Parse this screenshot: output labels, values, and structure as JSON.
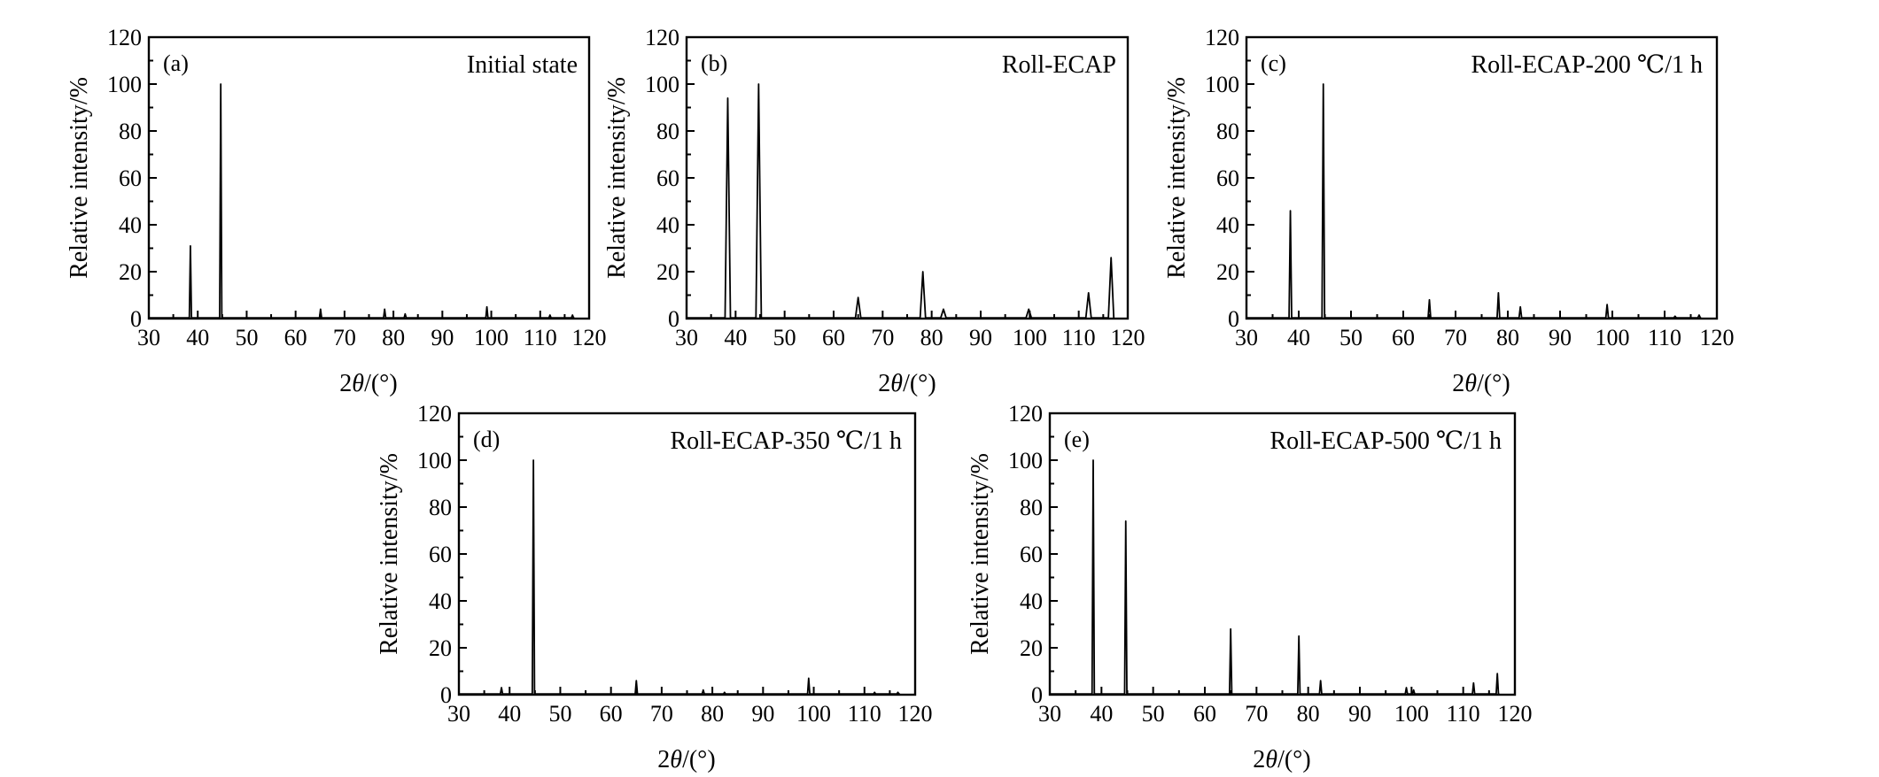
{
  "chart_data": [
    {
      "type": "line",
      "panel_label": "(a)",
      "title": "Initial state",
      "xlabel": "2θ/(°)",
      "ylabel": "Relative intensity/%",
      "xlim": [
        30,
        120
      ],
      "ylim": [
        0,
        120
      ],
      "xticks": [
        30,
        40,
        50,
        60,
        70,
        80,
        90,
        100,
        110,
        120
      ],
      "yticks": [
        0,
        20,
        40,
        60,
        80,
        100,
        120
      ],
      "grid": false,
      "peaks": [
        {
          "x": 38.5,
          "y": 31
        },
        {
          "x": 44.7,
          "y": 100
        },
        {
          "x": 65.1,
          "y": 4
        },
        {
          "x": 78.2,
          "y": 4
        },
        {
          "x": 82.4,
          "y": 2
        },
        {
          "x": 99.1,
          "y": 5
        },
        {
          "x": 112.0,
          "y": 1.5
        },
        {
          "x": 116.6,
          "y": 1.5
        }
      ]
    },
    {
      "type": "line",
      "panel_label": "(b)",
      "title": "Roll-ECAP",
      "xlabel": "2θ/(°)",
      "ylabel": "Relative intensity/%",
      "xlim": [
        30,
        120
      ],
      "ylim": [
        0,
        120
      ],
      "xticks": [
        30,
        40,
        50,
        60,
        70,
        80,
        90,
        100,
        110,
        120
      ],
      "yticks": [
        0,
        20,
        40,
        60,
        80,
        100,
        120
      ],
      "grid": false,
      "peaks": [
        {
          "x": 38.4,
          "y": 94
        },
        {
          "x": 44.7,
          "y": 100
        },
        {
          "x": 65.0,
          "y": 9
        },
        {
          "x": 78.2,
          "y": 20
        },
        {
          "x": 82.4,
          "y": 4
        },
        {
          "x": 99.8,
          "y": 4
        },
        {
          "x": 112.0,
          "y": 11
        },
        {
          "x": 116.6,
          "y": 26
        }
      ]
    },
    {
      "type": "line",
      "panel_label": "(c)",
      "title": "Roll-ECAP-200 ℃/1 h",
      "xlabel": "2θ/(°)",
      "ylabel": "Relative intensity/%",
      "xlim": [
        30,
        120
      ],
      "ylim": [
        0,
        120
      ],
      "xticks": [
        30,
        40,
        50,
        60,
        70,
        80,
        90,
        100,
        110,
        120
      ],
      "yticks": [
        0,
        20,
        40,
        60,
        80,
        100,
        120
      ],
      "grid": false,
      "peaks": [
        {
          "x": 38.4,
          "y": 46
        },
        {
          "x": 44.7,
          "y": 100
        },
        {
          "x": 65.0,
          "y": 8
        },
        {
          "x": 78.2,
          "y": 11
        },
        {
          "x": 82.4,
          "y": 5
        },
        {
          "x": 99.0,
          "y": 6
        },
        {
          "x": 112.0,
          "y": 1
        },
        {
          "x": 116.6,
          "y": 1.5
        }
      ]
    },
    {
      "type": "line",
      "panel_label": "(d)",
      "title": "Roll-ECAP-350 ℃/1 h",
      "xlabel": "2θ/(°)",
      "ylabel": "Relative intensity/%",
      "xlim": [
        30,
        120
      ],
      "ylim": [
        0,
        120
      ],
      "xticks": [
        30,
        40,
        50,
        60,
        70,
        80,
        90,
        100,
        110,
        120
      ],
      "yticks": [
        0,
        20,
        40,
        60,
        80,
        100,
        120
      ],
      "grid": false,
      "peaks": [
        {
          "x": 38.4,
          "y": 3
        },
        {
          "x": 44.7,
          "y": 100
        },
        {
          "x": 65.0,
          "y": 6
        },
        {
          "x": 78.2,
          "y": 2
        },
        {
          "x": 82.4,
          "y": 1
        },
        {
          "x": 99.0,
          "y": 7
        },
        {
          "x": 112.0,
          "y": 1
        },
        {
          "x": 116.6,
          "y": 1
        }
      ]
    },
    {
      "type": "line",
      "panel_label": "(e)",
      "title": "Roll-ECAP-500 ℃/1 h",
      "xlabel": "2θ/(°)",
      "ylabel": "Relative intensity/%",
      "xlim": [
        30,
        120
      ],
      "ylim": [
        0,
        120
      ],
      "xticks": [
        30,
        40,
        50,
        60,
        70,
        80,
        90,
        100,
        110,
        120
      ],
      "yticks": [
        0,
        20,
        40,
        60,
        80,
        100,
        120
      ],
      "grid": false,
      "peaks": [
        {
          "x": 38.4,
          "y": 100
        },
        {
          "x": 44.7,
          "y": 74
        },
        {
          "x": 65.0,
          "y": 28
        },
        {
          "x": 78.2,
          "y": 25
        },
        {
          "x": 82.4,
          "y": 6
        },
        {
          "x": 99.0,
          "y": 3
        },
        {
          "x": 100.4,
          "y": 2
        },
        {
          "x": 112.0,
          "y": 5
        },
        {
          "x": 116.6,
          "y": 9
        }
      ]
    }
  ]
}
